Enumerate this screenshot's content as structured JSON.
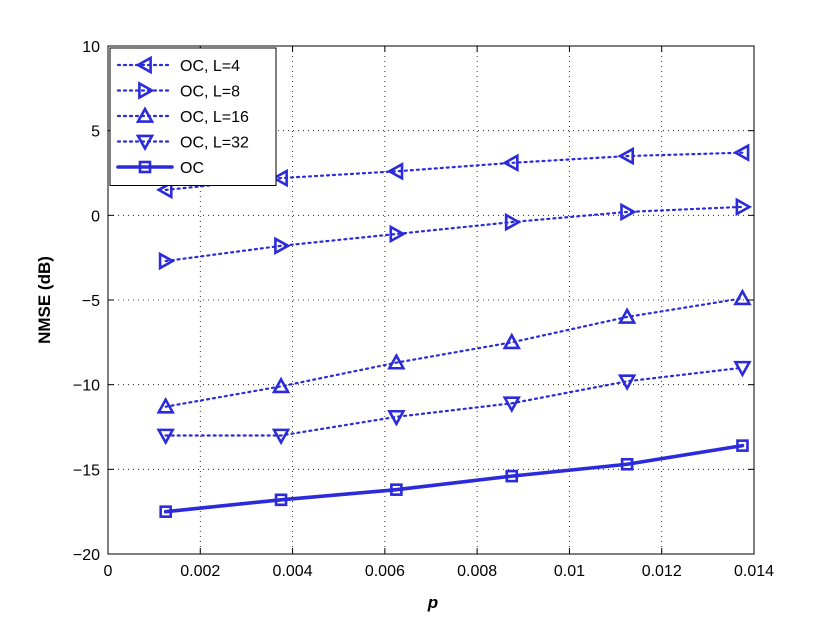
{
  "chart_data": {
    "type": "line",
    "xlabel": "p",
    "ylabel": "NMSE (dB)",
    "xlim": [
      0,
      0.014
    ],
    "ylim": [
      -20,
      10
    ],
    "x_ticks": [
      0,
      0.002,
      0.004,
      0.006,
      0.008,
      0.01,
      0.012,
      0.014
    ],
    "x_tick_labels": [
      "0",
      "0.002",
      "0.004",
      "0.006",
      "0.008",
      "0.01",
      "0.012",
      "0.014"
    ],
    "y_ticks": [
      -20,
      -15,
      -10,
      -5,
      0,
      5,
      10
    ],
    "y_tick_labels": [
      "−20",
      "−15",
      "−10",
      "−5",
      "0",
      "5",
      "10"
    ],
    "grid": true,
    "grid_style": "dotted",
    "legend_placement": "top-left",
    "x": [
      0.00125,
      0.00375,
      0.00625,
      0.00875,
      0.01125,
      0.01375
    ],
    "series": [
      {
        "name": "OC, L=4",
        "marker": "triangle-left",
        "line_style": "dotted",
        "color": "#2b2bdc",
        "values": [
          1.5,
          2.2,
          2.6,
          3.1,
          3.5,
          3.7
        ]
      },
      {
        "name": "OC, L=8",
        "marker": "triangle-right",
        "line_style": "dotted",
        "color": "#2b2bdc",
        "values": [
          -2.7,
          -1.8,
          -1.1,
          -0.4,
          0.2,
          0.5
        ]
      },
      {
        "name": "OC, L=16",
        "marker": "triangle-up",
        "line_style": "dotted",
        "color": "#2b2bdc",
        "values": [
          -11.3,
          -10.1,
          -8.7,
          -7.5,
          -6.0,
          -4.9
        ]
      },
      {
        "name": "OC, L=32",
        "marker": "triangle-down",
        "line_style": "dotted",
        "color": "#2b2bdc",
        "values": [
          -13.0,
          -13.0,
          -11.9,
          -11.1,
          -9.8,
          -9.0
        ]
      },
      {
        "name": "OC",
        "marker": "square",
        "line_style": "solid",
        "color": "#2b2bdc",
        "values": [
          -17.5,
          -16.8,
          -16.2,
          -15.4,
          -14.7,
          -13.6
        ]
      }
    ]
  }
}
